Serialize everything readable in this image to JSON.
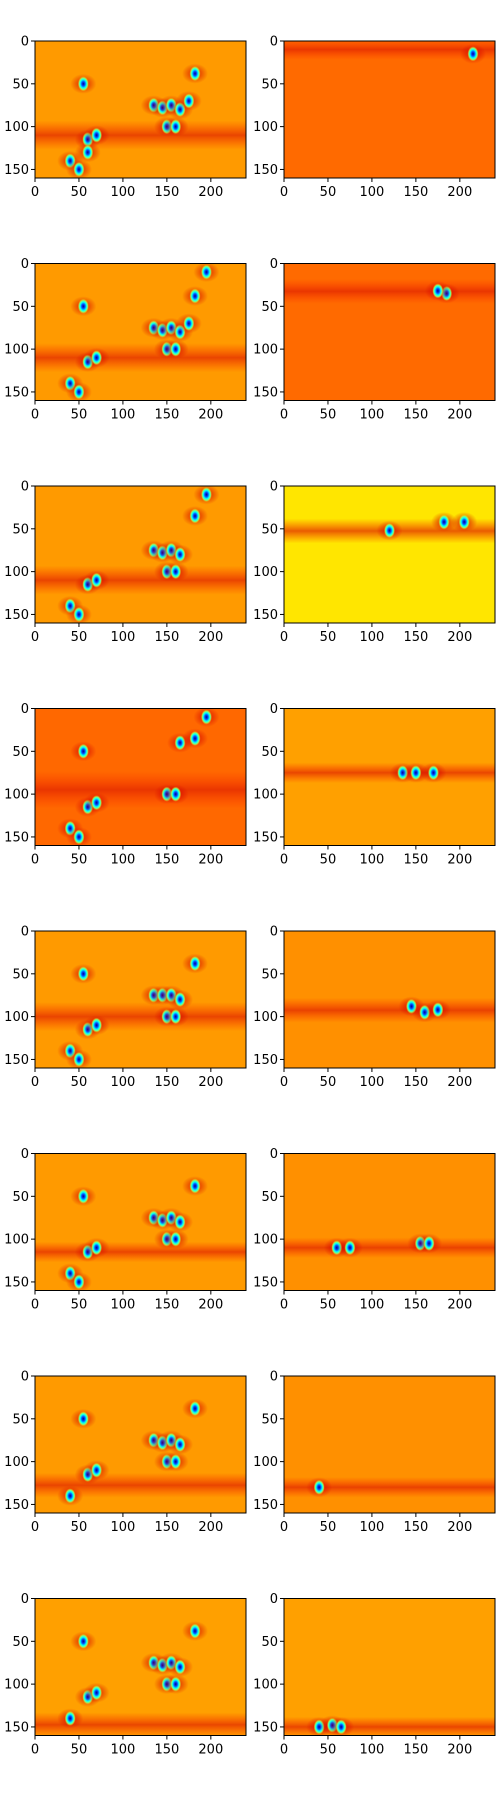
{
  "figure": {
    "rows": 8,
    "cols": 2,
    "background": "#ffffff",
    "colormap": "jet"
  },
  "chart_data": {
    "type": "heatmap",
    "title": "",
    "xlabel": "",
    "ylabel": "",
    "xlim": [
      0,
      240
    ],
    "ylim": [
      160,
      0
    ],
    "x_ticks": [
      0,
      50,
      100,
      150,
      200
    ],
    "y_ticks": [
      0,
      50,
      100,
      150
    ],
    "x_tick_labels": [
      "0",
      "50",
      "100",
      "150",
      "200"
    ],
    "y_tick_labels": [
      "0",
      "50",
      "100",
      "150"
    ],
    "grid": false,
    "legend": "none",
    "colors": {
      "jet_dark_blue": "#00008f",
      "jet_blue": "#0050ff",
      "jet_cyan": "#00ffff",
      "jet_green": "#7fff7f",
      "jet_yellow": "#ffe000",
      "jet_orange": "#ff9000",
      "jet_red": "#ff2000",
      "jet_dark_red": "#800000"
    },
    "panels": [
      {
        "row": 0,
        "col": 0,
        "background": "#ff9a00",
        "band": [
          100,
          120
        ],
        "hot": [
          [
            55,
            50
          ],
          [
            135,
            75
          ],
          [
            145,
            78
          ],
          [
            155,
            75
          ],
          [
            165,
            80
          ],
          [
            175,
            70
          ],
          [
            182,
            38
          ],
          [
            150,
            100
          ],
          [
            160,
            100
          ],
          [
            40,
            140
          ],
          [
            50,
            150
          ],
          [
            60,
            115
          ],
          [
            70,
            110
          ],
          [
            60,
            130
          ]
        ]
      },
      {
        "row": 0,
        "col": 1,
        "background": "#ff6a00",
        "band": [
          5,
          15
        ],
        "hot": [
          [
            215,
            15
          ]
        ]
      },
      {
        "row": 1,
        "col": 0,
        "background": "#ff9a00",
        "band": [
          100,
          120
        ],
        "hot": [
          [
            55,
            50
          ],
          [
            135,
            75
          ],
          [
            145,
            78
          ],
          [
            155,
            75
          ],
          [
            165,
            80
          ],
          [
            175,
            70
          ],
          [
            182,
            38
          ],
          [
            150,
            100
          ],
          [
            160,
            100
          ],
          [
            40,
            140
          ],
          [
            50,
            150
          ],
          [
            60,
            115
          ],
          [
            70,
            110
          ],
          [
            195,
            10
          ]
        ]
      },
      {
        "row": 1,
        "col": 1,
        "background": "#ff6a00",
        "band": [
          25,
          40
        ],
        "hot": [
          [
            185,
            35
          ],
          [
            175,
            32
          ]
        ]
      },
      {
        "row": 2,
        "col": 0,
        "background": "#ff9a00",
        "band": [
          100,
          120
        ],
        "hot": [
          [
            135,
            75
          ],
          [
            145,
            78
          ],
          [
            155,
            75
          ],
          [
            165,
            80
          ],
          [
            150,
            100
          ],
          [
            160,
            100
          ],
          [
            40,
            140
          ],
          [
            50,
            150
          ],
          [
            60,
            115
          ],
          [
            70,
            110
          ],
          [
            195,
            10
          ],
          [
            182,
            35
          ]
        ]
      },
      {
        "row": 2,
        "col": 1,
        "background": "#ffe600",
        "band": [
          45,
          60
        ],
        "hot": [
          [
            120,
            52
          ],
          [
            182,
            42
          ],
          [
            205,
            42
          ]
        ]
      },
      {
        "row": 3,
        "col": 0,
        "background": "#ff6800",
        "band": [
          80,
          110
        ],
        "hot": [
          [
            55,
            50
          ],
          [
            165,
            40
          ],
          [
            182,
            35
          ],
          [
            150,
            100
          ],
          [
            160,
            100
          ],
          [
            40,
            140
          ],
          [
            50,
            150
          ],
          [
            60,
            115
          ],
          [
            70,
            110
          ],
          [
            195,
            10
          ]
        ]
      },
      {
        "row": 3,
        "col": 1,
        "background": "#ffa000",
        "band": [
          70,
          80
        ],
        "hot": [
          [
            135,
            75
          ],
          [
            150,
            75
          ],
          [
            170,
            75
          ]
        ]
      },
      {
        "row": 4,
        "col": 0,
        "background": "#ff9a00",
        "band": [
          90,
          110
        ],
        "hot": [
          [
            55,
            50
          ],
          [
            135,
            75
          ],
          [
            145,
            75
          ],
          [
            155,
            75
          ],
          [
            165,
            80
          ],
          [
            182,
            38
          ],
          [
            150,
            100
          ],
          [
            160,
            100
          ],
          [
            40,
            140
          ],
          [
            50,
            150
          ],
          [
            60,
            115
          ],
          [
            70,
            110
          ]
        ]
      },
      {
        "row": 4,
        "col": 1,
        "background": "#ff9000",
        "band": [
          85,
          100
        ],
        "hot": [
          [
            145,
            88
          ],
          [
            160,
            95
          ],
          [
            175,
            92
          ]
        ]
      },
      {
        "row": 5,
        "col": 0,
        "background": "#ff9a00",
        "band": [
          110,
          120
        ],
        "hot": [
          [
            55,
            50
          ],
          [
            135,
            75
          ],
          [
            145,
            78
          ],
          [
            155,
            75
          ],
          [
            165,
            80
          ],
          [
            182,
            38
          ],
          [
            150,
            100
          ],
          [
            160,
            100
          ],
          [
            40,
            140
          ],
          [
            50,
            150
          ],
          [
            60,
            115
          ],
          [
            70,
            110
          ]
        ]
      },
      {
        "row": 5,
        "col": 1,
        "background": "#ff9000",
        "band": [
          105,
          115
        ],
        "hot": [
          [
            60,
            110
          ],
          [
            75,
            110
          ],
          [
            155,
            105
          ],
          [
            165,
            105
          ]
        ]
      },
      {
        "row": 6,
        "col": 0,
        "background": "#ff9a00",
        "band": [
          120,
          135
        ],
        "hot": [
          [
            55,
            50
          ],
          [
            135,
            75
          ],
          [
            145,
            78
          ],
          [
            155,
            75
          ],
          [
            165,
            80
          ],
          [
            182,
            38
          ],
          [
            150,
            100
          ],
          [
            160,
            100
          ],
          [
            40,
            140
          ],
          [
            60,
            115
          ],
          [
            70,
            110
          ]
        ]
      },
      {
        "row": 6,
        "col": 1,
        "background": "#ff9000",
        "band": [
          125,
          135
        ],
        "hot": [
          [
            40,
            130
          ]
        ]
      },
      {
        "row": 7,
        "col": 0,
        "background": "#ffa000",
        "band": [
          140,
          155
        ],
        "hot": [
          [
            55,
            50
          ],
          [
            135,
            75
          ],
          [
            145,
            78
          ],
          [
            155,
            75
          ],
          [
            165,
            80
          ],
          [
            182,
            38
          ],
          [
            150,
            100
          ],
          [
            160,
            100
          ],
          [
            40,
            140
          ],
          [
            60,
            115
          ],
          [
            70,
            110
          ]
        ]
      },
      {
        "row": 7,
        "col": 1,
        "background": "#ffa000",
        "band": [
          145,
          155
        ],
        "hot": [
          [
            40,
            150
          ],
          [
            55,
            148
          ],
          [
            65,
            150
          ]
        ]
      }
    ]
  }
}
